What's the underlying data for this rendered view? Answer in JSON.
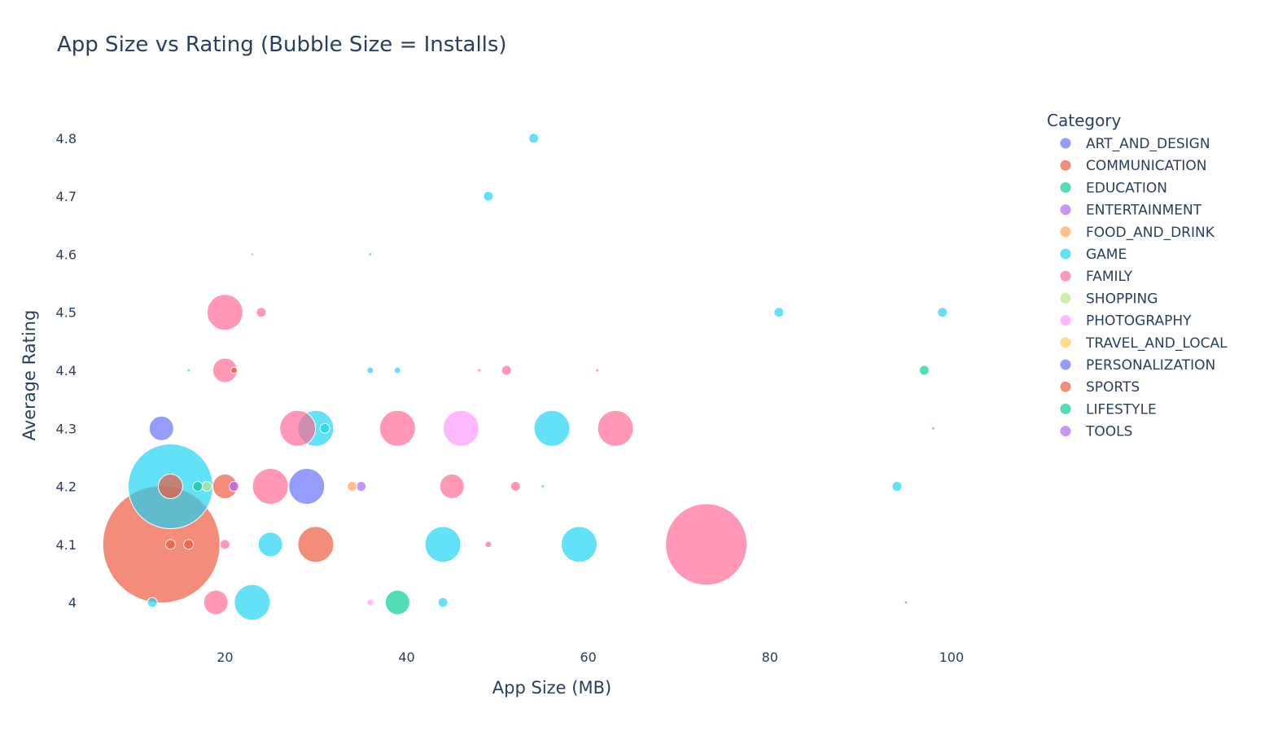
{
  "chart_data": {
    "type": "scatter",
    "title": "App Size vs Rating (Bubble Size = Installs)",
    "xlabel": "App Size (MB)",
    "ylabel": "Average Rating",
    "xlim": [
      1.5,
      110.5
    ],
    "ylim": [
      3.93,
      4.87
    ],
    "x_ticks": [
      20,
      40,
      60,
      80,
      100
    ],
    "y_ticks": [
      4,
      4.1,
      4.2,
      4.3,
      4.4,
      4.5,
      4.6,
      4.7,
      4.8
    ],
    "grid": false,
    "legend_title": "Category",
    "legend_position": "right",
    "size_encoding": "Installs",
    "series": [
      {
        "name": "ART_AND_DESIGN",
        "color": "#636efa",
        "points": [
          {
            "x": 13,
            "y": 4.3,
            "s": 15
          },
          {
            "x": 29,
            "y": 4.2,
            "s": 22
          }
        ]
      },
      {
        "name": "COMMUNICATION",
        "color": "#ef553b",
        "points": [
          {
            "x": 13,
            "y": 4.1,
            "s": 72
          },
          {
            "x": 14,
            "y": 4.1,
            "s": 6
          },
          {
            "x": 16,
            "y": 4.1,
            "s": 6
          },
          {
            "x": 20,
            "y": 4.2,
            "s": 15
          },
          {
            "x": 30,
            "y": 4.1,
            "s": 22
          },
          {
            "x": 21,
            "y": 4.4,
            "s": 4
          }
        ]
      },
      {
        "name": "EDUCATION",
        "color": "#00cc96",
        "points": [
          {
            "x": 39,
            "y": 4.0,
            "s": 15
          },
          {
            "x": 97,
            "y": 4.4,
            "s": 6
          }
        ]
      },
      {
        "name": "ENTERTAINMENT",
        "color": "#ab63fa",
        "points": [
          {
            "x": 21,
            "y": 4.2,
            "s": 6
          },
          {
            "x": 35,
            "y": 4.2,
            "s": 6
          }
        ]
      },
      {
        "name": "FOOD_AND_DRINK",
        "color": "#ffa15a",
        "points": [
          {
            "x": 23,
            "y": 4.6,
            "s": 2
          },
          {
            "x": 34,
            "y": 4.2,
            "s": 6
          }
        ]
      },
      {
        "name": "GAME",
        "color": "#19d3f3",
        "points": [
          {
            "x": 14,
            "y": 4.2,
            "s": 52
          },
          {
            "x": 23,
            "y": 4.0,
            "s": 22
          },
          {
            "x": 25,
            "y": 4.1,
            "s": 15
          },
          {
            "x": 30,
            "y": 4.3,
            "s": 22
          },
          {
            "x": 31,
            "y": 4.3,
            "s": 6
          },
          {
            "x": 44,
            "y": 4.1,
            "s": 22
          },
          {
            "x": 56,
            "y": 4.3,
            "s": 22
          },
          {
            "x": 59,
            "y": 4.1,
            "s": 22
          },
          {
            "x": 54,
            "y": 4.8,
            "s": 6
          },
          {
            "x": 49,
            "y": 4.7,
            "s": 6
          },
          {
            "x": 81,
            "y": 4.5,
            "s": 6
          },
          {
            "x": 99,
            "y": 4.5,
            "s": 6
          },
          {
            "x": 94,
            "y": 4.2,
            "s": 6
          },
          {
            "x": 36,
            "y": 4.4,
            "s": 4
          },
          {
            "x": 39,
            "y": 4.4,
            "s": 4
          },
          {
            "x": 44,
            "y": 4.0,
            "s": 6
          },
          {
            "x": 12,
            "y": 4.0,
            "s": 6
          },
          {
            "x": 16,
            "y": 4.4,
            "s": 2
          },
          {
            "x": 36,
            "y": 4.6,
            "s": 2
          },
          {
            "x": 55,
            "y": 4.2,
            "s": 2
          }
        ]
      },
      {
        "name": "FAMILY",
        "color": "#ff6692",
        "points": [
          {
            "x": 20,
            "y": 4.5,
            "s": 22
          },
          {
            "x": 24,
            "y": 4.5,
            "s": 6
          },
          {
            "x": 20,
            "y": 4.4,
            "s": 15
          },
          {
            "x": 28,
            "y": 4.3,
            "s": 22
          },
          {
            "x": 39,
            "y": 4.3,
            "s": 22
          },
          {
            "x": 63,
            "y": 4.3,
            "s": 22
          },
          {
            "x": 25,
            "y": 4.2,
            "s": 22
          },
          {
            "x": 45,
            "y": 4.2,
            "s": 15
          },
          {
            "x": 52,
            "y": 4.2,
            "s": 6
          },
          {
            "x": 73,
            "y": 4.1,
            "s": 50
          },
          {
            "x": 20,
            "y": 4.1,
            "s": 6
          },
          {
            "x": 49,
            "y": 4.1,
            "s": 4
          },
          {
            "x": 19,
            "y": 4.0,
            "s": 15
          },
          {
            "x": 51,
            "y": 4.4,
            "s": 6
          },
          {
            "x": 48,
            "y": 4.4,
            "s": 2
          },
          {
            "x": 61,
            "y": 4.4,
            "s": 2
          },
          {
            "x": 98,
            "y": 4.3,
            "s": 2
          },
          {
            "x": 95,
            "y": 4.0,
            "s": 2
          }
        ]
      },
      {
        "name": "SHOPPING",
        "color": "#b6e880",
        "points": [
          {
            "x": 18,
            "y": 4.2,
            "s": 6
          }
        ]
      },
      {
        "name": "PHOTOGRAPHY",
        "color": "#ff97ff",
        "points": [
          {
            "x": 46,
            "y": 4.3,
            "s": 22
          },
          {
            "x": 36,
            "y": 4.0,
            "s": 4
          }
        ]
      },
      {
        "name": "TRAVEL_AND_LOCAL",
        "color": "#fecb52",
        "points": []
      },
      {
        "name": "PERSONALIZATION",
        "color": "#636efa",
        "points": []
      },
      {
        "name": "SPORTS",
        "color": "#ef553b",
        "points": [
          {
            "x": 14,
            "y": 4.2,
            "s": 15
          }
        ]
      },
      {
        "name": "LIFESTYLE",
        "color": "#00cc96",
        "points": [
          {
            "x": 17,
            "y": 4.2,
            "s": 6
          }
        ]
      },
      {
        "name": "TOOLS",
        "color": "#ab63fa",
        "points": []
      }
    ]
  }
}
